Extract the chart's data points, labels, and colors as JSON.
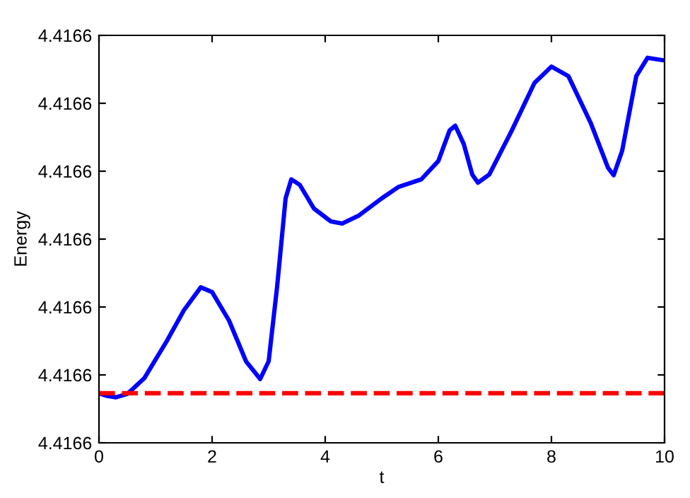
{
  "chart_data": {
    "type": "line",
    "xlabel": "t",
    "ylabel": "Energy",
    "xlim": [
      0,
      10
    ],
    "xticks": [
      0,
      2,
      4,
      6,
      8,
      10
    ],
    "ylim": [
      4.41657,
      4.41663
    ],
    "yticks": [
      {
        "value": 4.41657,
        "label": "4.4166"
      },
      {
        "value": 4.41658,
        "label": "4.4166"
      },
      {
        "value": 4.41659,
        "label": "4.4166"
      },
      {
        "value": 4.4166,
        "label": "4.4166"
      },
      {
        "value": 4.41661,
        "label": "4.4166"
      },
      {
        "value": 4.41662,
        "label": "4.4166"
      },
      {
        "value": 4.41663,
        "label": "4.4166"
      }
    ],
    "grid": false,
    "legend": false,
    "series": [
      {
        "color": "#0000ff",
        "line_style": "solid",
        "x": [
          0,
          0.15,
          0.3,
          0.5,
          0.8,
          1.2,
          1.5,
          1.8,
          2.0,
          2.3,
          2.6,
          2.85,
          3.0,
          3.15,
          3.3,
          3.4,
          3.55,
          3.8,
          4.1,
          4.3,
          4.6,
          5.0,
          5.3,
          5.7,
          6.0,
          6.2,
          6.3,
          6.45,
          6.6,
          6.7,
          6.9,
          7.3,
          7.7,
          8.0,
          8.3,
          8.7,
          9.0,
          9.1,
          9.25,
          9.5,
          9.7,
          10
        ],
        "values": [
          4.4165773,
          4.4165769,
          4.4165767,
          4.4165772,
          4.4165795,
          4.416585,
          4.4165895,
          4.4165929,
          4.4165922,
          4.416588,
          4.416582,
          4.4165794,
          4.416582,
          4.416593,
          4.416606,
          4.4166088,
          4.416608,
          4.4166045,
          4.4166026,
          4.4166023,
          4.4166035,
          4.416606,
          4.4166077,
          4.4166088,
          4.4166115,
          4.416616,
          4.4166167,
          4.416614,
          4.4166095,
          4.4166083,
          4.4166095,
          4.416616,
          4.416623,
          4.4166254,
          4.416624,
          4.416617,
          4.4166105,
          4.4166094,
          4.416613,
          4.416624,
          4.4166267,
          4.4166263
        ]
      },
      {
        "color": "#ff0000",
        "line_style": "dashed",
        "x": [
          0,
          2,
          4,
          6,
          8,
          10
        ],
        "values": [
          4.4165773,
          4.4165773,
          4.4165773,
          4.4165773,
          4.4165773,
          4.4165773
        ]
      }
    ]
  }
}
